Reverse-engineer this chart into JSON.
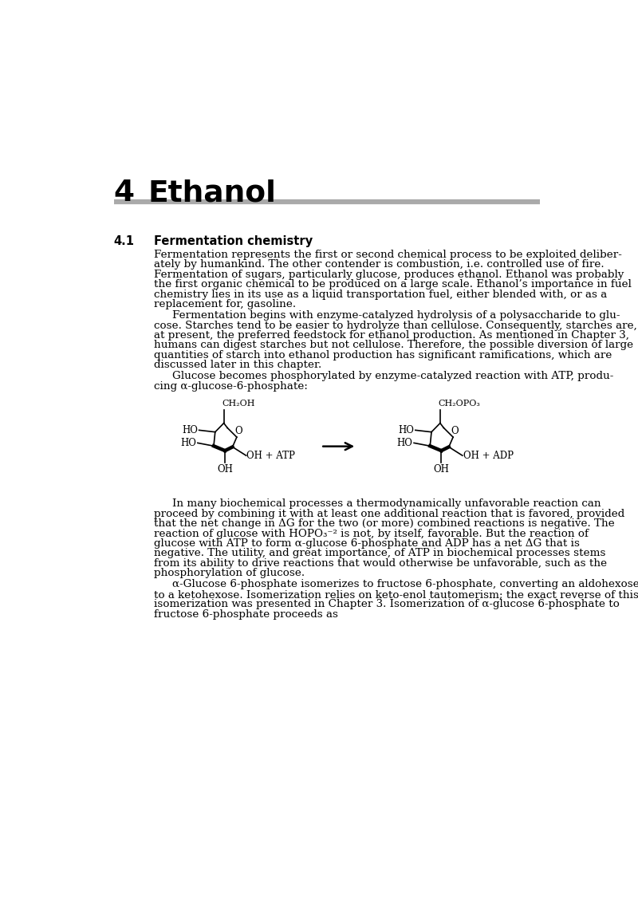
{
  "title_number": "4",
  "title_text": "Ethanol",
  "section_number": "4.1",
  "section_title": "Fermentation chemistry",
  "bg_color": "#ffffff",
  "line_color": "#aaaaaa",
  "p1_lines": [
    "Fermentation represents the first or second chemical process to be exploited deliber-",
    "ately by humankind. The other contender is combustion, i.e. controlled use of fire.",
    "Fermentation of sugars, particularly glucose, produces ethanol. Ethanol was probably",
    "the first organic chemical to be produced on a large scale. Ethanol’s importance in fuel",
    "chemistry lies in its use as a liquid transportation fuel, either blended with, or as a",
    "replacement for, gasoline."
  ],
  "p2_lines": [
    "Fermentation begins with enzyme-catalyzed hydrolysis of a polysaccharide to glu-",
    "cose. Starches tend to be easier to hydrolyze than cellulose. Consequently, starches are,",
    "at present, the preferred feedstock for ethanol production. As mentioned in Chapter 3,",
    "humans can digest starches but not cellulose. Therefore, the possible diversion of large",
    "quantities of starch into ethanol production has significant ramifications, which are",
    "discussed later in this chapter."
  ],
  "p3_lines": [
    "Glucose becomes phosphorylated by enzyme-catalyzed reaction with ATP, produ-",
    "cing α-glucose-6-phosphate:"
  ],
  "p4_lines": [
    "In many biochemical processes a thermodynamically unfavorable reaction can",
    "proceed by combining it with at least one additional reaction that is favored, provided",
    "that the net change in ΔG for the two (or more) combined reactions is negative. The",
    "reaction of glucose with HOPO₃⁻² is not, by itself, favorable. But the reaction of",
    "glucose with ATP to form α-glucose 6-phosphate and ADP has a net ΔG that is",
    "negative. The utility, and great importance, of ATP in biochemical processes stems",
    "from its ability to drive reactions that would otherwise be unfavorable, such as the",
    "phosphorylation of glucose."
  ],
  "p5_lines": [
    "α-Glucose 6-phosphate isomerizes to fructose 6-phosphate, converting an aldohexose",
    "to a ketohexose. Isomerization relies on keto-enol tautomerism; the exact reverse of this",
    "isomerization was presented in Chapter 3. Isomerization of α-glucose 6-phosphate to",
    "fructose 6-phosphate proceeds as"
  ]
}
